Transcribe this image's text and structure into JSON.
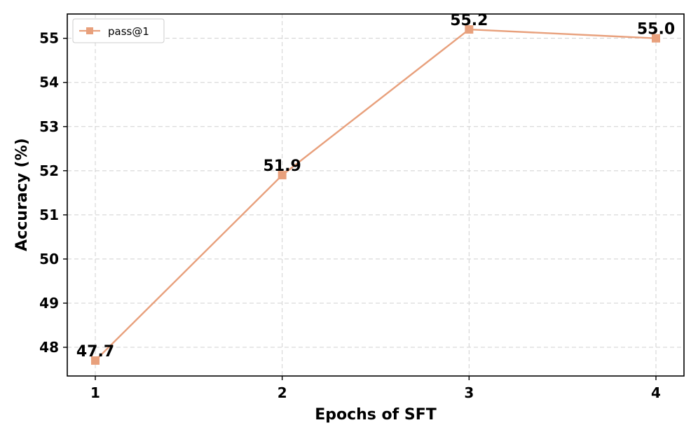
{
  "chart_data": {
    "type": "line",
    "title": "",
    "xlabel": "Epochs of SFT",
    "ylabel": "Accuracy (%)",
    "x": [
      1,
      2,
      3,
      4
    ],
    "xlim": [
      0.85,
      4.15
    ],
    "ylim": [
      47.35,
      55.55
    ],
    "yticks": [
      48,
      49,
      50,
      51,
      52,
      53,
      54,
      55
    ],
    "grid": true,
    "legend_position": "top-left",
    "series": [
      {
        "name": "pass@1",
        "color": "#e8a07c",
        "marker": "square",
        "values": [
          47.7,
          51.9,
          55.2,
          55.0
        ],
        "labels": [
          "47.7",
          "51.9",
          "55.2",
          "55.0"
        ]
      }
    ]
  }
}
